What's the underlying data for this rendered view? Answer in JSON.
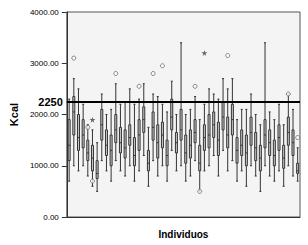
{
  "chart_data": {
    "type": "boxplot",
    "x_label": "Individuos",
    "y_label": "Kcal",
    "categories": [
      null,
      null,
      null,
      null,
      null,
      null,
      null,
      null,
      null,
      null,
      null,
      null,
      null,
      null,
      null,
      null,
      null,
      null,
      null,
      null,
      null,
      null,
      null,
      null,
      null,
      null,
      null,
      null,
      null,
      null,
      null,
      null,
      null,
      null,
      null,
      null,
      null,
      null,
      null,
      null,
      null,
      null,
      null,
      null,
      null,
      null,
      null,
      null,
      null,
      null
    ],
    "boxes": [
      [
        700,
        1100,
        1400,
        1900,
        2300
      ],
      [
        1000,
        1600,
        2050,
        2350,
        2700
      ],
      [
        900,
        1300,
        1550,
        2000,
        2500
      ],
      [
        1000,
        1350,
        1600,
        1900,
        2200
      ],
      [
        800,
        1100,
        1250,
        1500,
        1800
      ],
      [
        600,
        900,
        1150,
        1400,
        1700
      ],
      [
        500,
        750,
        850,
        1100,
        1450
      ],
      [
        1100,
        1500,
        1800,
        2100,
        2400
      ],
      [
        900,
        1200,
        1400,
        1700,
        2000
      ],
      [
        700,
        1000,
        1300,
        1600,
        2100
      ],
      [
        1100,
        1450,
        1700,
        2000,
        2600
      ],
      [
        900,
        1250,
        1450,
        1750,
        2200
      ],
      [
        800,
        1150,
        1350,
        1700,
        2250
      ],
      [
        1000,
        1400,
        1550,
        1800,
        2500
      ],
      [
        700,
        1000,
        1200,
        1550,
        2200
      ],
      [
        900,
        1300,
        1600,
        1900,
        2300
      ],
      [
        1200,
        1650,
        1900,
        2150,
        2600
      ],
      [
        600,
        900,
        1050,
        1300,
        1750
      ],
      [
        1100,
        1500,
        1750,
        2050,
        2400
      ],
      [
        800,
        1150,
        1450,
        1800,
        2350
      ],
      [
        1000,
        1350,
        1600,
        1850,
        2200
      ],
      [
        700,
        1000,
        1200,
        1500,
        2050
      ],
      [
        1300,
        1700,
        1950,
        2300,
        2650
      ],
      [
        900,
        1250,
        1450,
        1650,
        2000
      ],
      [
        1000,
        1500,
        1700,
        2100,
        3400
      ],
      [
        700,
        1050,
        1250,
        1600,
        2000
      ],
      [
        800,
        1150,
        1400,
        1700,
        2100
      ],
      [
        1100,
        1450,
        1650,
        1900,
        2350
      ],
      [
        500,
        900,
        1050,
        1400,
        1900
      ],
      [
        900,
        1300,
        1550,
        1800,
        2200
      ],
      [
        1000,
        1350,
        1600,
        2000,
        2500
      ],
      [
        1200,
        1550,
        1800,
        2050,
        2400
      ],
      [
        800,
        1200,
        1500,
        1850,
        2300
      ],
      [
        1300,
        1700,
        1950,
        2250,
        2700
      ],
      [
        900,
        1350,
        1600,
        1950,
        2500
      ],
      [
        1100,
        1600,
        1900,
        2200,
        2700
      ],
      [
        700,
        1050,
        1300,
        1550,
        1900
      ],
      [
        900,
        1200,
        1400,
        1700,
        2100
      ],
      [
        600,
        1000,
        1250,
        1600,
        2100
      ],
      [
        1000,
        1400,
        1650,
        1950,
        2400
      ],
      [
        800,
        1100,
        1350,
        1650,
        2000
      ],
      [
        500,
        900,
        1150,
        1400,
        1800
      ],
      [
        1000,
        1350,
        1600,
        1900,
        3400
      ],
      [
        800,
        1200,
        1450,
        1700,
        2050
      ],
      [
        700,
        1000,
        1200,
        1500,
        1900
      ],
      [
        900,
        1300,
        1550,
        1800,
        2200
      ],
      [
        600,
        950,
        1150,
        1400,
        1800
      ],
      [
        1000,
        1400,
        1650,
        1950,
        2400
      ],
      [
        800,
        1200,
        1450,
        1700,
        2100
      ],
      [
        700,
        850,
        900,
        1050,
        1350
      ]
    ],
    "outliers": [
      {
        "x": 1,
        "y": 3100,
        "marker": "circle"
      },
      {
        "x": 4,
        "y": 1750,
        "marker": "circle"
      },
      {
        "x": 5,
        "y": 1900,
        "marker": "star"
      },
      {
        "x": 5,
        "y": 700,
        "marker": "circle"
      },
      {
        "x": 10,
        "y": 2800,
        "marker": "circle"
      },
      {
        "x": 15,
        "y": 2550,
        "marker": "circle"
      },
      {
        "x": 18,
        "y": 2800,
        "marker": "circle"
      },
      {
        "x": 20,
        "y": 2950,
        "marker": "circle"
      },
      {
        "x": 27,
        "y": 2550,
        "marker": "circle"
      },
      {
        "x": 28,
        "y": 500,
        "marker": "circle"
      },
      {
        "x": 29,
        "y": 3200,
        "marker": "star"
      },
      {
        "x": 34,
        "y": 3150,
        "marker": "circle"
      },
      {
        "x": 47,
        "y": 2400,
        "marker": "circle"
      },
      {
        "x": 49,
        "y": 1550,
        "marker": "circle"
      }
    ],
    "reference_line": {
      "value": 2250,
      "label": "2250"
    },
    "ylim": [
      0,
      4000
    ],
    "yticks": [
      {
        "value": 0,
        "label": "0.00"
      },
      {
        "value": 1000,
        "label": "1000.00"
      },
      {
        "value": 2000,
        "label": "2000.00"
      },
      {
        "value": 3000,
        "label": "3000.00"
      },
      {
        "value": 4000,
        "label": "4000.00"
      }
    ],
    "color": "#c8c8c8",
    "grid": false
  }
}
